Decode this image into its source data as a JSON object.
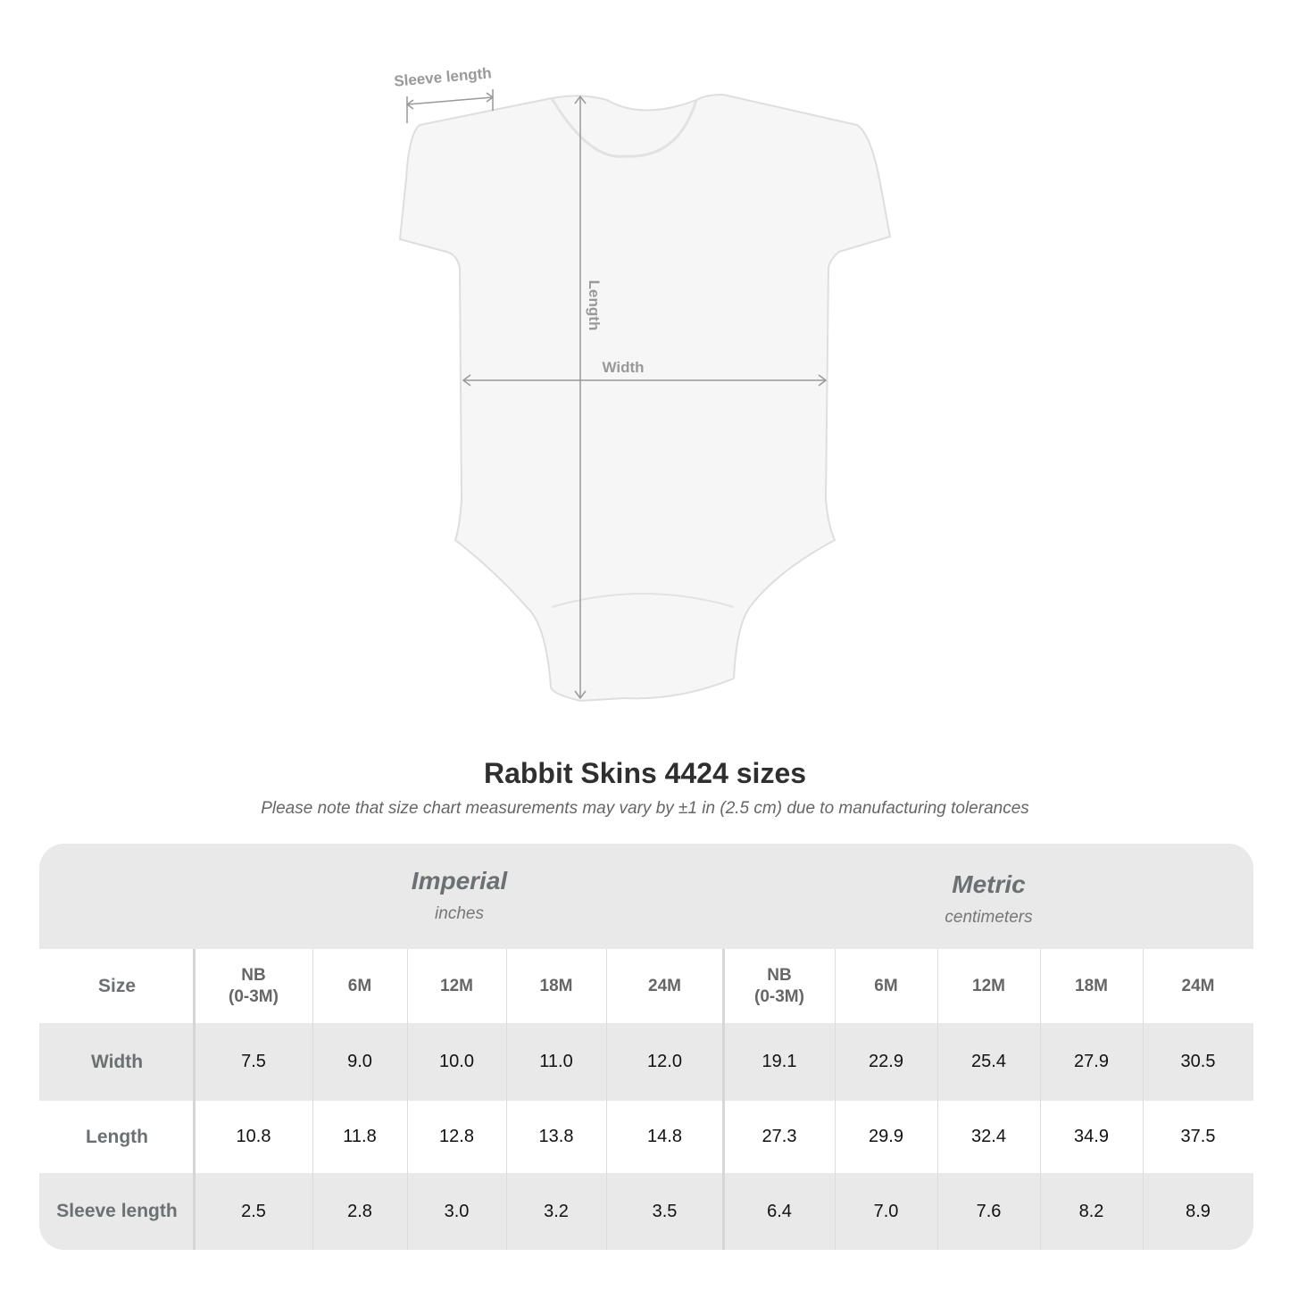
{
  "diagram": {
    "labels": {
      "sleeve": "Sleeve length",
      "length": "Length",
      "width": "Width"
    }
  },
  "title": "Rabbit Skins 4424 sizes",
  "subtitle": "Please note that size chart measurements may vary by ±1 in (2.5 cm) due to manufacturing tolerances",
  "table": {
    "imperial": {
      "name": "Imperial",
      "unit": "inches"
    },
    "metric": {
      "name": "Metric",
      "unit": "centimeters"
    },
    "size_label": "Size",
    "imperial_sizes": [
      "NB\n(0-3M)",
      "6M",
      "12M",
      "18M",
      "24M"
    ],
    "metric_sizes": [
      "NB\n(0-3M)",
      "6M",
      "12M",
      "18M",
      "24M"
    ],
    "rows": [
      {
        "label": "Width",
        "imperial": [
          "7.5",
          "9.0",
          "10.0",
          "11.0",
          "12.0"
        ],
        "metric": [
          "19.1",
          "22.9",
          "25.4",
          "27.9",
          "30.5"
        ]
      },
      {
        "label": "Length",
        "imperial": [
          "10.8",
          "11.8",
          "12.8",
          "13.8",
          "14.8"
        ],
        "metric": [
          "27.3",
          "29.9",
          "32.4",
          "34.9",
          "37.5"
        ]
      },
      {
        "label": "Sleeve length",
        "imperial": [
          "2.5",
          "2.8",
          "3.0",
          "3.2",
          "3.5"
        ],
        "metric": [
          "6.4",
          "7.0",
          "7.6",
          "8.2",
          "8.9"
        ]
      }
    ]
  }
}
